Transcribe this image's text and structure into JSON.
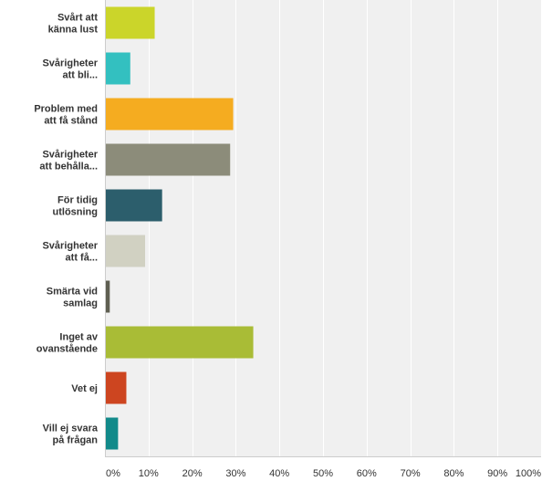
{
  "chart_data": {
    "type": "bar",
    "orientation": "horizontal",
    "categories": [
      [
        "Svårt att",
        "känna lust"
      ],
      [
        "Svårigheter",
        "att bli..."
      ],
      [
        "Problem med",
        "att få stånd"
      ],
      [
        "Svårigheter",
        "att behålla..."
      ],
      [
        "För tidig",
        "utlösning"
      ],
      [
        "Svårigheter",
        "att få..."
      ],
      [
        "Smärta vid",
        "samlag"
      ],
      [
        "Inget av",
        "ovanstående"
      ],
      [
        "Vet ej"
      ],
      [
        "Vill ej svara",
        "på frågan"
      ]
    ],
    "values": [
      11.2,
      5.6,
      29.2,
      28.5,
      12.9,
      9.0,
      0.9,
      33.8,
      4.7,
      2.8
    ],
    "colors": [
      "#cbd52a",
      "#33c0c0",
      "#f5ac20",
      "#8c8c7a",
      "#2c5e6c",
      "#d1d1c2",
      "#5f5f52",
      "#a9bc36",
      "#cd4520",
      "#128a8a"
    ],
    "xlim": [
      0,
      100
    ],
    "ticks": [
      "0%",
      "10%",
      "20%",
      "30%",
      "40%",
      "50%",
      "60%",
      "70%",
      "80%",
      "90%",
      "100%"
    ],
    "tick_values": [
      0,
      10,
      20,
      30,
      40,
      50,
      60,
      70,
      80,
      90,
      100
    ],
    "grid": true,
    "plot_background": "#f0f0f0",
    "grid_color": "#ffffff"
  }
}
